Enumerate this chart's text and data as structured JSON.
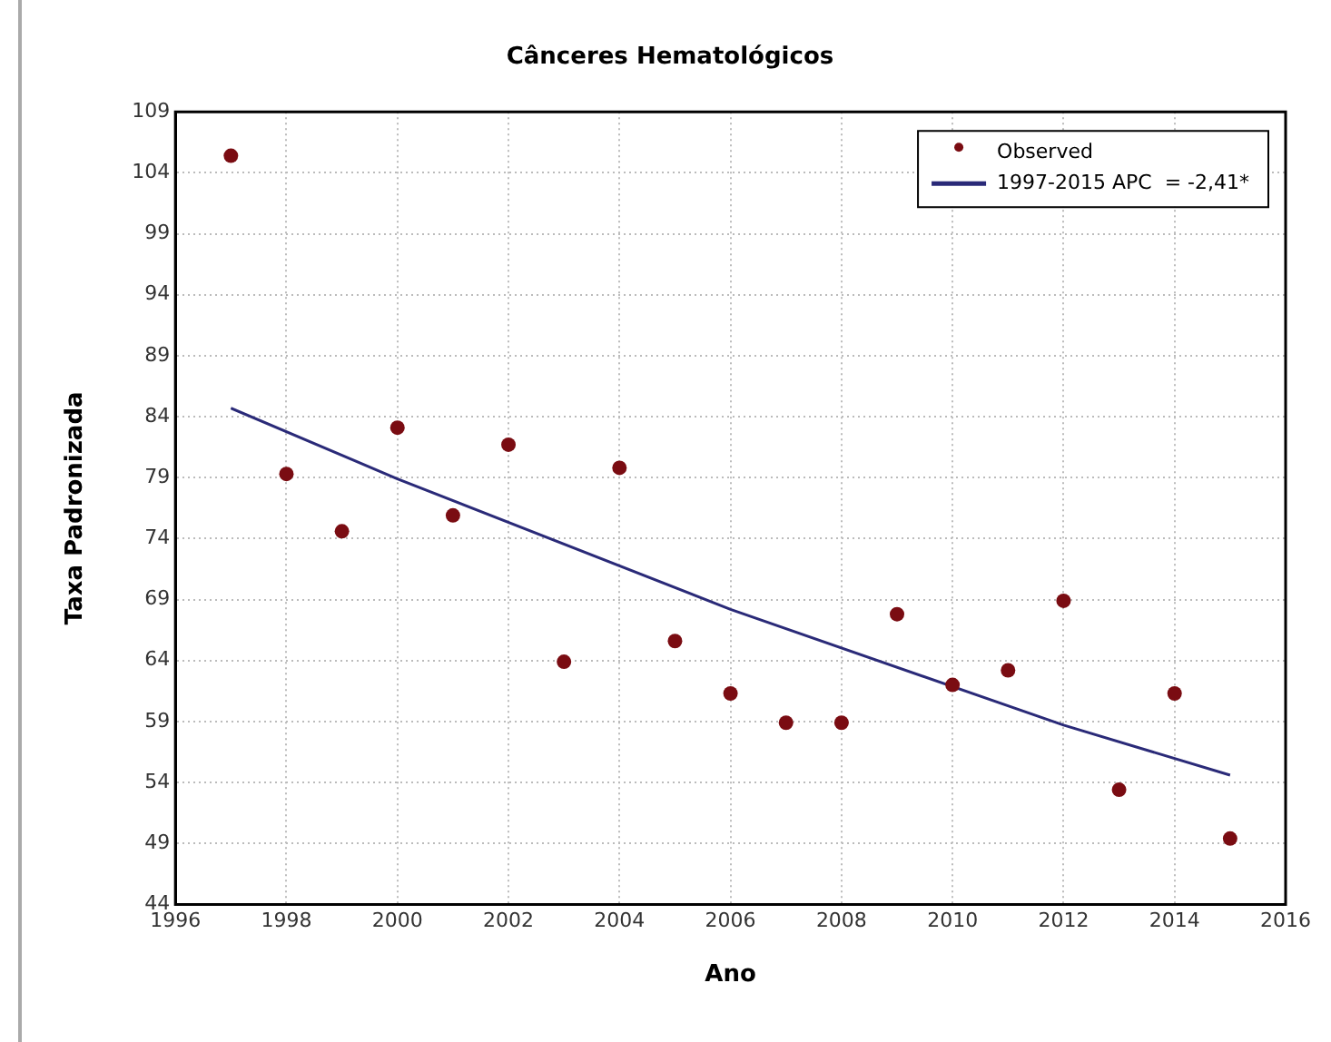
{
  "chart_data": {
    "type": "scatter",
    "title": "Cânceres Hematológicos",
    "xlabel": "Ano",
    "ylabel": "Taxa Padronizada",
    "series": [
      {
        "name": "Observed",
        "color": "#7a0c12",
        "marker": "circle",
        "x": [
          1997,
          1998,
          1999,
          2000,
          2001,
          2002,
          2003,
          2004,
          2005,
          2006,
          2007,
          2008,
          2009,
          2010,
          2011,
          2012,
          2013,
          2014,
          2015
        ],
        "values": [
          105.4,
          79.3,
          74.6,
          83.1,
          75.9,
          81.7,
          63.9,
          79.8,
          65.6,
          61.3,
          58.9,
          58.9,
          67.8,
          62.0,
          63.2,
          68.9,
          53.4,
          61.3,
          49.4
        ]
      },
      {
        "name": "1997-2015 APC  = -2,41*",
        "type": "line",
        "color": "#2a2a78",
        "marker": "none",
        "line_style": "solid",
        "x": [
          1997,
          2000,
          2006,
          2012,
          2015
        ],
        "values": [
          84.7,
          78.9,
          68.2,
          58.7,
          54.6
        ]
      }
    ],
    "xlim": [
      1996,
      2016
    ],
    "xticks": [
      1996,
      1998,
      2000,
      2002,
      2004,
      2006,
      2008,
      2010,
      2012,
      2014,
      2016
    ],
    "ylim": [
      44,
      109
    ],
    "yticks": [
      44,
      49,
      54,
      59,
      64,
      69,
      74,
      79,
      84,
      89,
      94,
      99,
      104,
      109
    ],
    "grid": true,
    "legend": "top right"
  }
}
